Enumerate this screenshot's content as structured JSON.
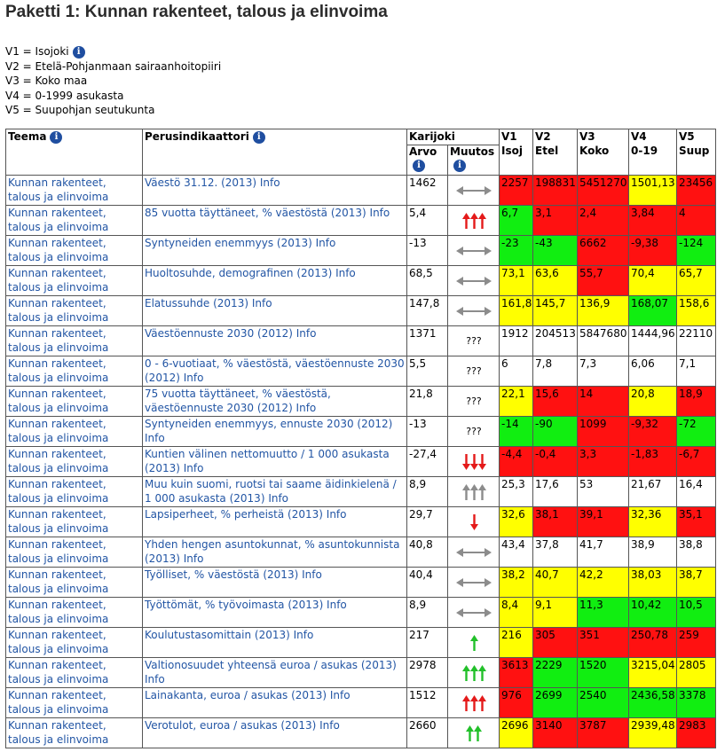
{
  "page": {
    "title": "Paketti 1: Kunnan rakenteet, talous ja elinvoima"
  },
  "legend": [
    {
      "text": "V1 = Isojoki",
      "info": true
    },
    {
      "text": "V2 = Etelä-Pohjanmaan sairaanhoitopiiri",
      "info": false
    },
    {
      "text": "V3 = Koko maa",
      "info": false
    },
    {
      "text": "V4 = 0-1999 asukasta",
      "info": false
    },
    {
      "text": "V5 = Suupohjan seutukunta",
      "info": false
    }
  ],
  "table": {
    "headers": {
      "teema": "Teema",
      "perus": "Perusindikaattori",
      "karijoki": "Karijoki",
      "arvo": "Arvo",
      "muutos": "Muutos",
      "v1": "V1",
      "v1_sub": "Isoj",
      "v2": "V2",
      "v2_sub": "Etel",
      "v3": "V3",
      "v3_sub": "Koko",
      "v4": "V4",
      "v4_sub": "0-19",
      "v5": "V5",
      "v5_sub": "Suup"
    },
    "colors": {
      "red": "#ff1111",
      "yellow": "#ffff00",
      "green": "#11ee11",
      "link": "#2255a4",
      "info_icon": "#1f4ea0"
    },
    "rows": [
      {
        "teema": "Kunnan rakenteet, talous ja elinvoima",
        "indikaattori": "Väestö 31.12. (2013) Info",
        "arvo": "1462",
        "muutos": {
          "type": "both",
          "count": 1,
          "color": "gray"
        },
        "v": [
          {
            "t": "2257",
            "c": "red"
          },
          {
            "t": "198831",
            "c": "red"
          },
          {
            "t": "5451270",
            "c": "red"
          },
          {
            "t": "1501,13",
            "c": "yellow"
          },
          {
            "t": "23456",
            "c": "red"
          }
        ]
      },
      {
        "teema": "Kunnan rakenteet, talous ja elinvoima",
        "indikaattori": "85 vuotta täyttäneet, % väestöstä (2013) Info",
        "arvo": "5,4",
        "muutos": {
          "type": "up",
          "count": 3,
          "color": "red"
        },
        "v": [
          {
            "t": "6,7",
            "c": "green"
          },
          {
            "t": "3,1",
            "c": "red"
          },
          {
            "t": "2,4",
            "c": "red"
          },
          {
            "t": "3,84",
            "c": "red"
          },
          {
            "t": "4",
            "c": "red"
          }
        ]
      },
      {
        "teema": "Kunnan rakenteet, talous ja elinvoima",
        "indikaattori": "Syntyneiden enemmyys (2013) Info",
        "arvo": "-13",
        "muutos": {
          "type": "both",
          "count": 1,
          "color": "gray"
        },
        "v": [
          {
            "t": "-23",
            "c": "green"
          },
          {
            "t": "-43",
            "c": "green"
          },
          {
            "t": "6662",
            "c": "red"
          },
          {
            "t": "-9,38",
            "c": "red"
          },
          {
            "t": "-124",
            "c": "green"
          }
        ]
      },
      {
        "teema": "Kunnan rakenteet, talous ja elinvoima",
        "indikaattori": "Huoltosuhde, demografinen (2013) Info",
        "arvo": "68,5",
        "muutos": {
          "type": "both",
          "count": 1,
          "color": "gray"
        },
        "v": [
          {
            "t": "73,1",
            "c": "yellow"
          },
          {
            "t": "63,6",
            "c": "yellow"
          },
          {
            "t": "55,7",
            "c": "red"
          },
          {
            "t": "70,4",
            "c": "yellow"
          },
          {
            "t": "65,7",
            "c": "yellow"
          }
        ]
      },
      {
        "teema": "Kunnan rakenteet, talous ja elinvoima",
        "indikaattori": "Elatussuhde (2013) Info",
        "arvo": "147,8",
        "muutos": {
          "type": "both",
          "count": 1,
          "color": "gray"
        },
        "v": [
          {
            "t": "161,8",
            "c": "yellow"
          },
          {
            "t": "145,7",
            "c": "yellow"
          },
          {
            "t": "136,9",
            "c": "yellow"
          },
          {
            "t": "168,07",
            "c": "green"
          },
          {
            "t": "158,6",
            "c": "yellow"
          }
        ]
      },
      {
        "teema": "Kunnan rakenteet, talous ja elinvoima",
        "indikaattori": "Väestöennuste 2030 (2012) Info",
        "arvo": "1371",
        "muutos": {
          "type": "text",
          "text": "???"
        },
        "v": [
          {
            "t": "1912",
            "c": "none"
          },
          {
            "t": "204513",
            "c": "none"
          },
          {
            "t": "5847680",
            "c": "none"
          },
          {
            "t": "1444,96",
            "c": "none"
          },
          {
            "t": "22110",
            "c": "none"
          }
        ]
      },
      {
        "teema": "Kunnan rakenteet, talous ja elinvoima",
        "indikaattori": "0 - 6-vuotiaat, % väestöstä, väestöennuste 2030 (2012) Info",
        "arvo": "5,5",
        "muutos": {
          "type": "text",
          "text": "???"
        },
        "v": [
          {
            "t": "6",
            "c": "none"
          },
          {
            "t": "7,8",
            "c": "none"
          },
          {
            "t": "7,3",
            "c": "none"
          },
          {
            "t": "6,06",
            "c": "none"
          },
          {
            "t": "7,1",
            "c": "none"
          }
        ]
      },
      {
        "teema": "Kunnan rakenteet, talous ja elinvoima",
        "indikaattori": "75 vuotta täyttäneet, % väestöstä, väestöennuste 2030 (2012) Info",
        "arvo": "21,8",
        "muutos": {
          "type": "text",
          "text": "???"
        },
        "v": [
          {
            "t": "22,1",
            "c": "yellow"
          },
          {
            "t": "15,6",
            "c": "red"
          },
          {
            "t": "14",
            "c": "red"
          },
          {
            "t": "20,8",
            "c": "yellow"
          },
          {
            "t": "18,9",
            "c": "red"
          }
        ]
      },
      {
        "teema": "Kunnan rakenteet, talous ja elinvoima",
        "indikaattori": "Syntyneiden enemmyys, ennuste 2030 (2012) Info",
        "arvo": "-13",
        "muutos": {
          "type": "text",
          "text": "???"
        },
        "v": [
          {
            "t": "-14",
            "c": "green"
          },
          {
            "t": "-90",
            "c": "green"
          },
          {
            "t": "1099",
            "c": "red"
          },
          {
            "t": "-9,32",
            "c": "red"
          },
          {
            "t": "-72",
            "c": "green"
          }
        ]
      },
      {
        "teema": "Kunnan rakenteet, talous ja elinvoima",
        "indikaattori": "Kuntien välinen nettomuutto / 1 000 asukasta (2013) Info",
        "arvo": "-27,4",
        "muutos": {
          "type": "down",
          "count": 3,
          "color": "red"
        },
        "v": [
          {
            "t": "-4,4",
            "c": "red"
          },
          {
            "t": "-0,4",
            "c": "red"
          },
          {
            "t": "3,3",
            "c": "red"
          },
          {
            "t": "-1,83",
            "c": "red"
          },
          {
            "t": "-6,7",
            "c": "red"
          }
        ]
      },
      {
        "teema": "Kunnan rakenteet, talous ja elinvoima",
        "indikaattori": "Muu kuin suomi, ruotsi tai saame äidinkielenä / 1 000 asukasta (2013) Info",
        "arvo": "8,9",
        "muutos": {
          "type": "up",
          "count": 3,
          "color": "gray"
        },
        "v": [
          {
            "t": "25,3",
            "c": "none"
          },
          {
            "t": "17,6",
            "c": "none"
          },
          {
            "t": "53",
            "c": "none"
          },
          {
            "t": "21,67",
            "c": "none"
          },
          {
            "t": "16,4",
            "c": "none"
          }
        ]
      },
      {
        "teema": "Kunnan rakenteet, talous ja elinvoima",
        "indikaattori": "Lapsiperheet, % perheistä (2013) Info",
        "arvo": "29,7",
        "muutos": {
          "type": "down",
          "count": 1,
          "color": "red"
        },
        "v": [
          {
            "t": "32,6",
            "c": "yellow"
          },
          {
            "t": "38,1",
            "c": "red"
          },
          {
            "t": "39,1",
            "c": "red"
          },
          {
            "t": "32,36",
            "c": "yellow"
          },
          {
            "t": "35,1",
            "c": "red"
          }
        ]
      },
      {
        "teema": "Kunnan rakenteet, talous ja elinvoima",
        "indikaattori": "Yhden hengen asuntokunnat, % asuntokunnista (2013) Info",
        "arvo": "40,8",
        "muutos": {
          "type": "both",
          "count": 1,
          "color": "gray"
        },
        "v": [
          {
            "t": "43,4",
            "c": "none"
          },
          {
            "t": "37,8",
            "c": "none"
          },
          {
            "t": "41,7",
            "c": "none"
          },
          {
            "t": "38,9",
            "c": "none"
          },
          {
            "t": "38,8",
            "c": "none"
          }
        ]
      },
      {
        "teema": "Kunnan rakenteet, talous ja elinvoima",
        "indikaattori": "Työlliset, % väestöstä (2013) Info",
        "arvo": "40,4",
        "muutos": {
          "type": "both",
          "count": 1,
          "color": "gray"
        },
        "v": [
          {
            "t": "38,2",
            "c": "yellow"
          },
          {
            "t": "40,7",
            "c": "yellow"
          },
          {
            "t": "42,2",
            "c": "yellow"
          },
          {
            "t": "38,03",
            "c": "yellow"
          },
          {
            "t": "38,7",
            "c": "yellow"
          }
        ]
      },
      {
        "teema": "Kunnan rakenteet, talous ja elinvoima",
        "indikaattori": "Työttömät, % työvoimasta (2013) Info",
        "arvo": "8,9",
        "muutos": {
          "type": "both",
          "count": 1,
          "color": "gray"
        },
        "v": [
          {
            "t": "8,4",
            "c": "yellow"
          },
          {
            "t": "9,1",
            "c": "yellow"
          },
          {
            "t": "11,3",
            "c": "green"
          },
          {
            "t": "10,42",
            "c": "green"
          },
          {
            "t": "10,5",
            "c": "green"
          }
        ]
      },
      {
        "teema": "Kunnan rakenteet, talous ja elinvoima",
        "indikaattori": "Koulutustasomittain (2013) Info",
        "arvo": "217",
        "muutos": {
          "type": "up",
          "count": 1,
          "color": "green"
        },
        "v": [
          {
            "t": "216",
            "c": "yellow"
          },
          {
            "t": "305",
            "c": "red"
          },
          {
            "t": "351",
            "c": "red"
          },
          {
            "t": "250,78",
            "c": "red"
          },
          {
            "t": "259",
            "c": "red"
          }
        ]
      },
      {
        "teema": "Kunnan rakenteet, talous ja elinvoima",
        "indikaattori": "Valtionosuudet yhteensä euroa / asukas (2013) Info",
        "arvo": "2978",
        "muutos": {
          "type": "up",
          "count": 3,
          "color": "green"
        },
        "v": [
          {
            "t": "3613",
            "c": "red"
          },
          {
            "t": "2229",
            "c": "green"
          },
          {
            "t": "1520",
            "c": "green"
          },
          {
            "t": "3215,04",
            "c": "yellow"
          },
          {
            "t": "2805",
            "c": "yellow"
          }
        ]
      },
      {
        "teema": "Kunnan rakenteet, talous ja elinvoima",
        "indikaattori": "Lainakanta, euroa / asukas (2013) Info",
        "arvo": "1512",
        "muutos": {
          "type": "up",
          "count": 3,
          "color": "red"
        },
        "v": [
          {
            "t": "976",
            "c": "red"
          },
          {
            "t": "2699",
            "c": "green"
          },
          {
            "t": "2540",
            "c": "green"
          },
          {
            "t": "2436,58",
            "c": "green"
          },
          {
            "t": "3378",
            "c": "green"
          }
        ]
      },
      {
        "teema": "Kunnan rakenteet, talous ja elinvoima",
        "indikaattori": "Verotulot, euroa / asukas (2013) Info",
        "arvo": "2660",
        "muutos": {
          "type": "up",
          "count": 2,
          "color": "green"
        },
        "v": [
          {
            "t": "2696",
            "c": "yellow"
          },
          {
            "t": "3140",
            "c": "red"
          },
          {
            "t": "3787",
            "c": "red"
          },
          {
            "t": "2939,48",
            "c": "yellow"
          },
          {
            "t": "2983",
            "c": "red"
          }
        ]
      }
    ]
  }
}
